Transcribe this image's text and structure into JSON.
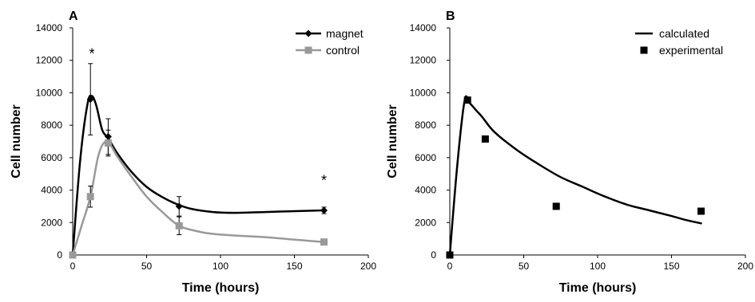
{
  "chart_data": [
    {
      "panel": "A",
      "type": "line",
      "xlabel": "Time (hours)",
      "ylabel": "Cell number",
      "xlim": [
        0,
        200
      ],
      "ylim": [
        0,
        14000
      ],
      "xticks": [
        0,
        50,
        100,
        150,
        200
      ],
      "yticks": [
        0,
        2000,
        4000,
        6000,
        8000,
        10000,
        12000,
        14000
      ],
      "grid": false,
      "legend_position": "top-right",
      "series": [
        {
          "name": "magnet",
          "color": "#000000",
          "marker": "diamond",
          "points": [
            {
              "x": 0,
              "y": 0,
              "err": 0
            },
            {
              "x": 12,
              "y": 9600,
              "err": 2200
            },
            {
              "x": 24,
              "y": 7300,
              "err": 1100
            },
            {
              "x": 72,
              "y": 3000,
              "err": 600
            },
            {
              "x": 170,
              "y": 2750,
              "err": 200
            }
          ],
          "curve": [
            [
              0,
              0
            ],
            [
              5,
              5800
            ],
            [
              10,
              9300
            ],
            [
              13,
              9800
            ],
            [
              16,
              9200
            ],
            [
              20,
              7700
            ],
            [
              24,
              7200
            ],
            [
              30,
              6300
            ],
            [
              40,
              5100
            ],
            [
              50,
              4200
            ],
            [
              60,
              3600
            ],
            [
              70,
              3150
            ],
            [
              80,
              2850
            ],
            [
              95,
              2650
            ],
            [
              110,
              2600
            ],
            [
              130,
              2650
            ],
            [
              150,
              2700
            ],
            [
              170,
              2750
            ]
          ]
        },
        {
          "name": "control",
          "color": "#999999",
          "marker": "square",
          "points": [
            {
              "x": 0,
              "y": 0,
              "err": 0
            },
            {
              "x": 12,
              "y": 3600,
              "err": 650
            },
            {
              "x": 24,
              "y": 6900,
              "err": 800
            },
            {
              "x": 72,
              "y": 1800,
              "err": 550
            },
            {
              "x": 170,
              "y": 800,
              "err": 0
            }
          ],
          "curve": [
            [
              0,
              0
            ],
            [
              6,
              1800
            ],
            [
              12,
              3600
            ],
            [
              17,
              6000
            ],
            [
              21,
              6900
            ],
            [
              25,
              6850
            ],
            [
              30,
              6100
            ],
            [
              40,
              4800
            ],
            [
              50,
              3600
            ],
            [
              60,
              2700
            ],
            [
              72,
              1800
            ],
            [
              85,
              1450
            ],
            [
              95,
              1300
            ],
            [
              110,
              1200
            ],
            [
              130,
              1100
            ],
            [
              150,
              950
            ],
            [
              170,
              800
            ]
          ]
        }
      ],
      "annotations": [
        {
          "text": "*",
          "x": 13,
          "y": 12500
        },
        {
          "text": "*",
          "x": 170,
          "y": 4700
        }
      ]
    },
    {
      "panel": "B",
      "type": "line",
      "xlabel": "Time (hours)",
      "ylabel": "Cell number",
      "xlim": [
        0,
        200
      ],
      "ylim": [
        0,
        14000
      ],
      "xticks": [
        0,
        50,
        100,
        150,
        200
      ],
      "yticks": [
        0,
        2000,
        4000,
        6000,
        8000,
        10000,
        12000,
        14000
      ],
      "grid": false,
      "legend_position": "top-right",
      "series": [
        {
          "name": "calculated",
          "color": "#000000",
          "marker": "none",
          "curve": [
            [
              0,
              0
            ],
            [
              5,
              5500
            ],
            [
              10,
              9500
            ],
            [
              13,
              9400
            ],
            [
              18,
              8900
            ],
            [
              22,
              8500
            ],
            [
              30,
              7600
            ],
            [
              45,
              6500
            ],
            [
              60,
              5600
            ],
            [
              75,
              4800
            ],
            [
              90,
              4200
            ],
            [
              105,
              3600
            ],
            [
              120,
              3100
            ],
            [
              135,
              2750
            ],
            [
              150,
              2400
            ],
            [
              160,
              2150
            ],
            [
              170,
              1950
            ]
          ]
        },
        {
          "name": "experimental",
          "color": "#000000",
          "marker": "square",
          "points": [
            {
              "x": 0,
              "y": 0
            },
            {
              "x": 12,
              "y": 9550
            },
            {
              "x": 24,
              "y": 7150
            },
            {
              "x": 72,
              "y": 3000
            },
            {
              "x": 170,
              "y": 2700
            }
          ]
        }
      ],
      "annotations": []
    }
  ]
}
